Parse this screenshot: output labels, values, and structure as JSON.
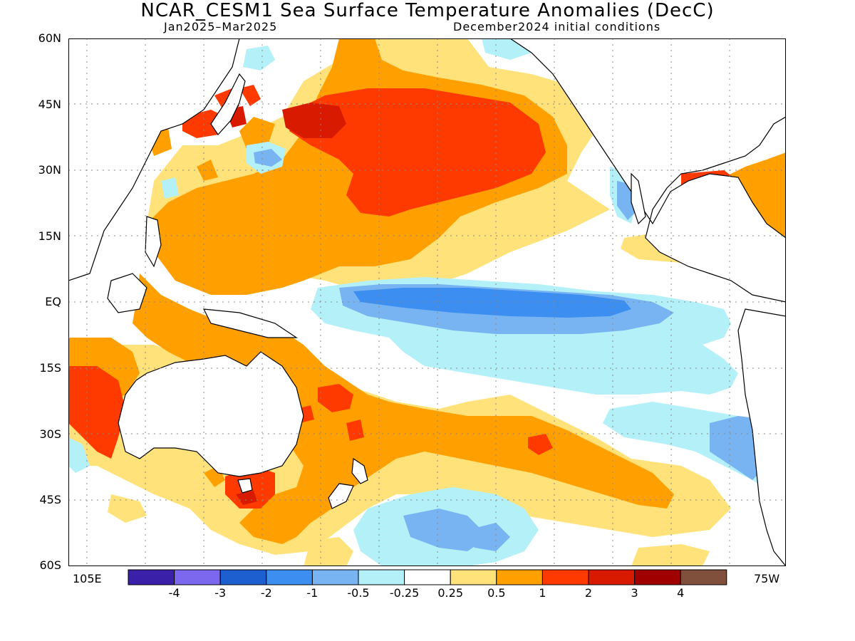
{
  "title": "NCAR_CESM1 Sea Surface Temperature Anomalies (DecC)",
  "subtitle_left": "Jan2025–Mar2025",
  "subtitle_right": "December2024 initial conditions",
  "lat_labels": [
    "60N",
    "45N",
    "30N",
    "15N",
    "EQ",
    "15S",
    "30S",
    "45S",
    "60S"
  ],
  "lon_labels": {
    "left": "105E",
    "right": "75W"
  },
  "colorbar": {
    "colors": [
      "#3a1fa8",
      "#7b68ee",
      "#1e5fcf",
      "#3c8ef0",
      "#78b4f2",
      "#b4f0f8",
      "#ffffff",
      "#ffe37a",
      "#ffa000",
      "#ff3a00",
      "#d81a00",
      "#a00000",
      "#80503c"
    ],
    "labels": [
      "-4",
      "-3",
      "-2",
      "-1",
      "-0.5",
      "-0.25",
      "0.25",
      "0.5",
      "1",
      "2",
      "3",
      "4"
    ]
  },
  "map_colors": {
    "land_outline": "#000000",
    "grid": "#888888"
  }
}
